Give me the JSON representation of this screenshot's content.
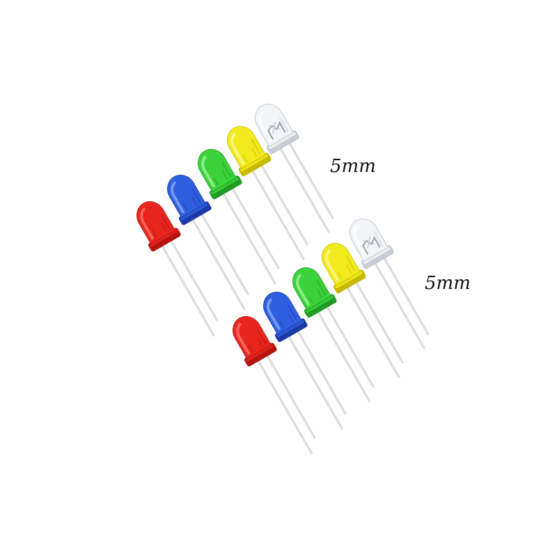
{
  "labels": {
    "top": "5mm",
    "bottom": "5mm"
  },
  "led_rows": [
    {
      "name": "upper-row",
      "leds": [
        {
          "color": "red"
        },
        {
          "color": "blue"
        },
        {
          "color": "green"
        },
        {
          "color": "yellow"
        },
        {
          "color": "white"
        }
      ]
    },
    {
      "name": "lower-row",
      "leds": [
        {
          "color": "red"
        },
        {
          "color": "blue"
        },
        {
          "color": "green"
        },
        {
          "color": "yellow"
        },
        {
          "color": "white"
        }
      ]
    }
  ],
  "palette": {
    "red": {
      "body": "#e8261f",
      "dark": "#b5130f",
      "light": "#ff7a70"
    },
    "blue": {
      "body": "#2f5fe0",
      "dark": "#1c3aa6",
      "light": "#8fb0ff"
    },
    "green": {
      "body": "#3cd23a",
      "dark": "#1f9a22",
      "light": "#a6f59d"
    },
    "yellow": {
      "body": "#f2ea1c",
      "dark": "#c9b800",
      "light": "#fffaa0"
    },
    "white": {
      "body": "#f3f4f7",
      "dark": "#c9ccd4",
      "light": "#ffffff"
    },
    "lead": "#c8cbd0",
    "lead_highlight": "#f2f3f5"
  }
}
